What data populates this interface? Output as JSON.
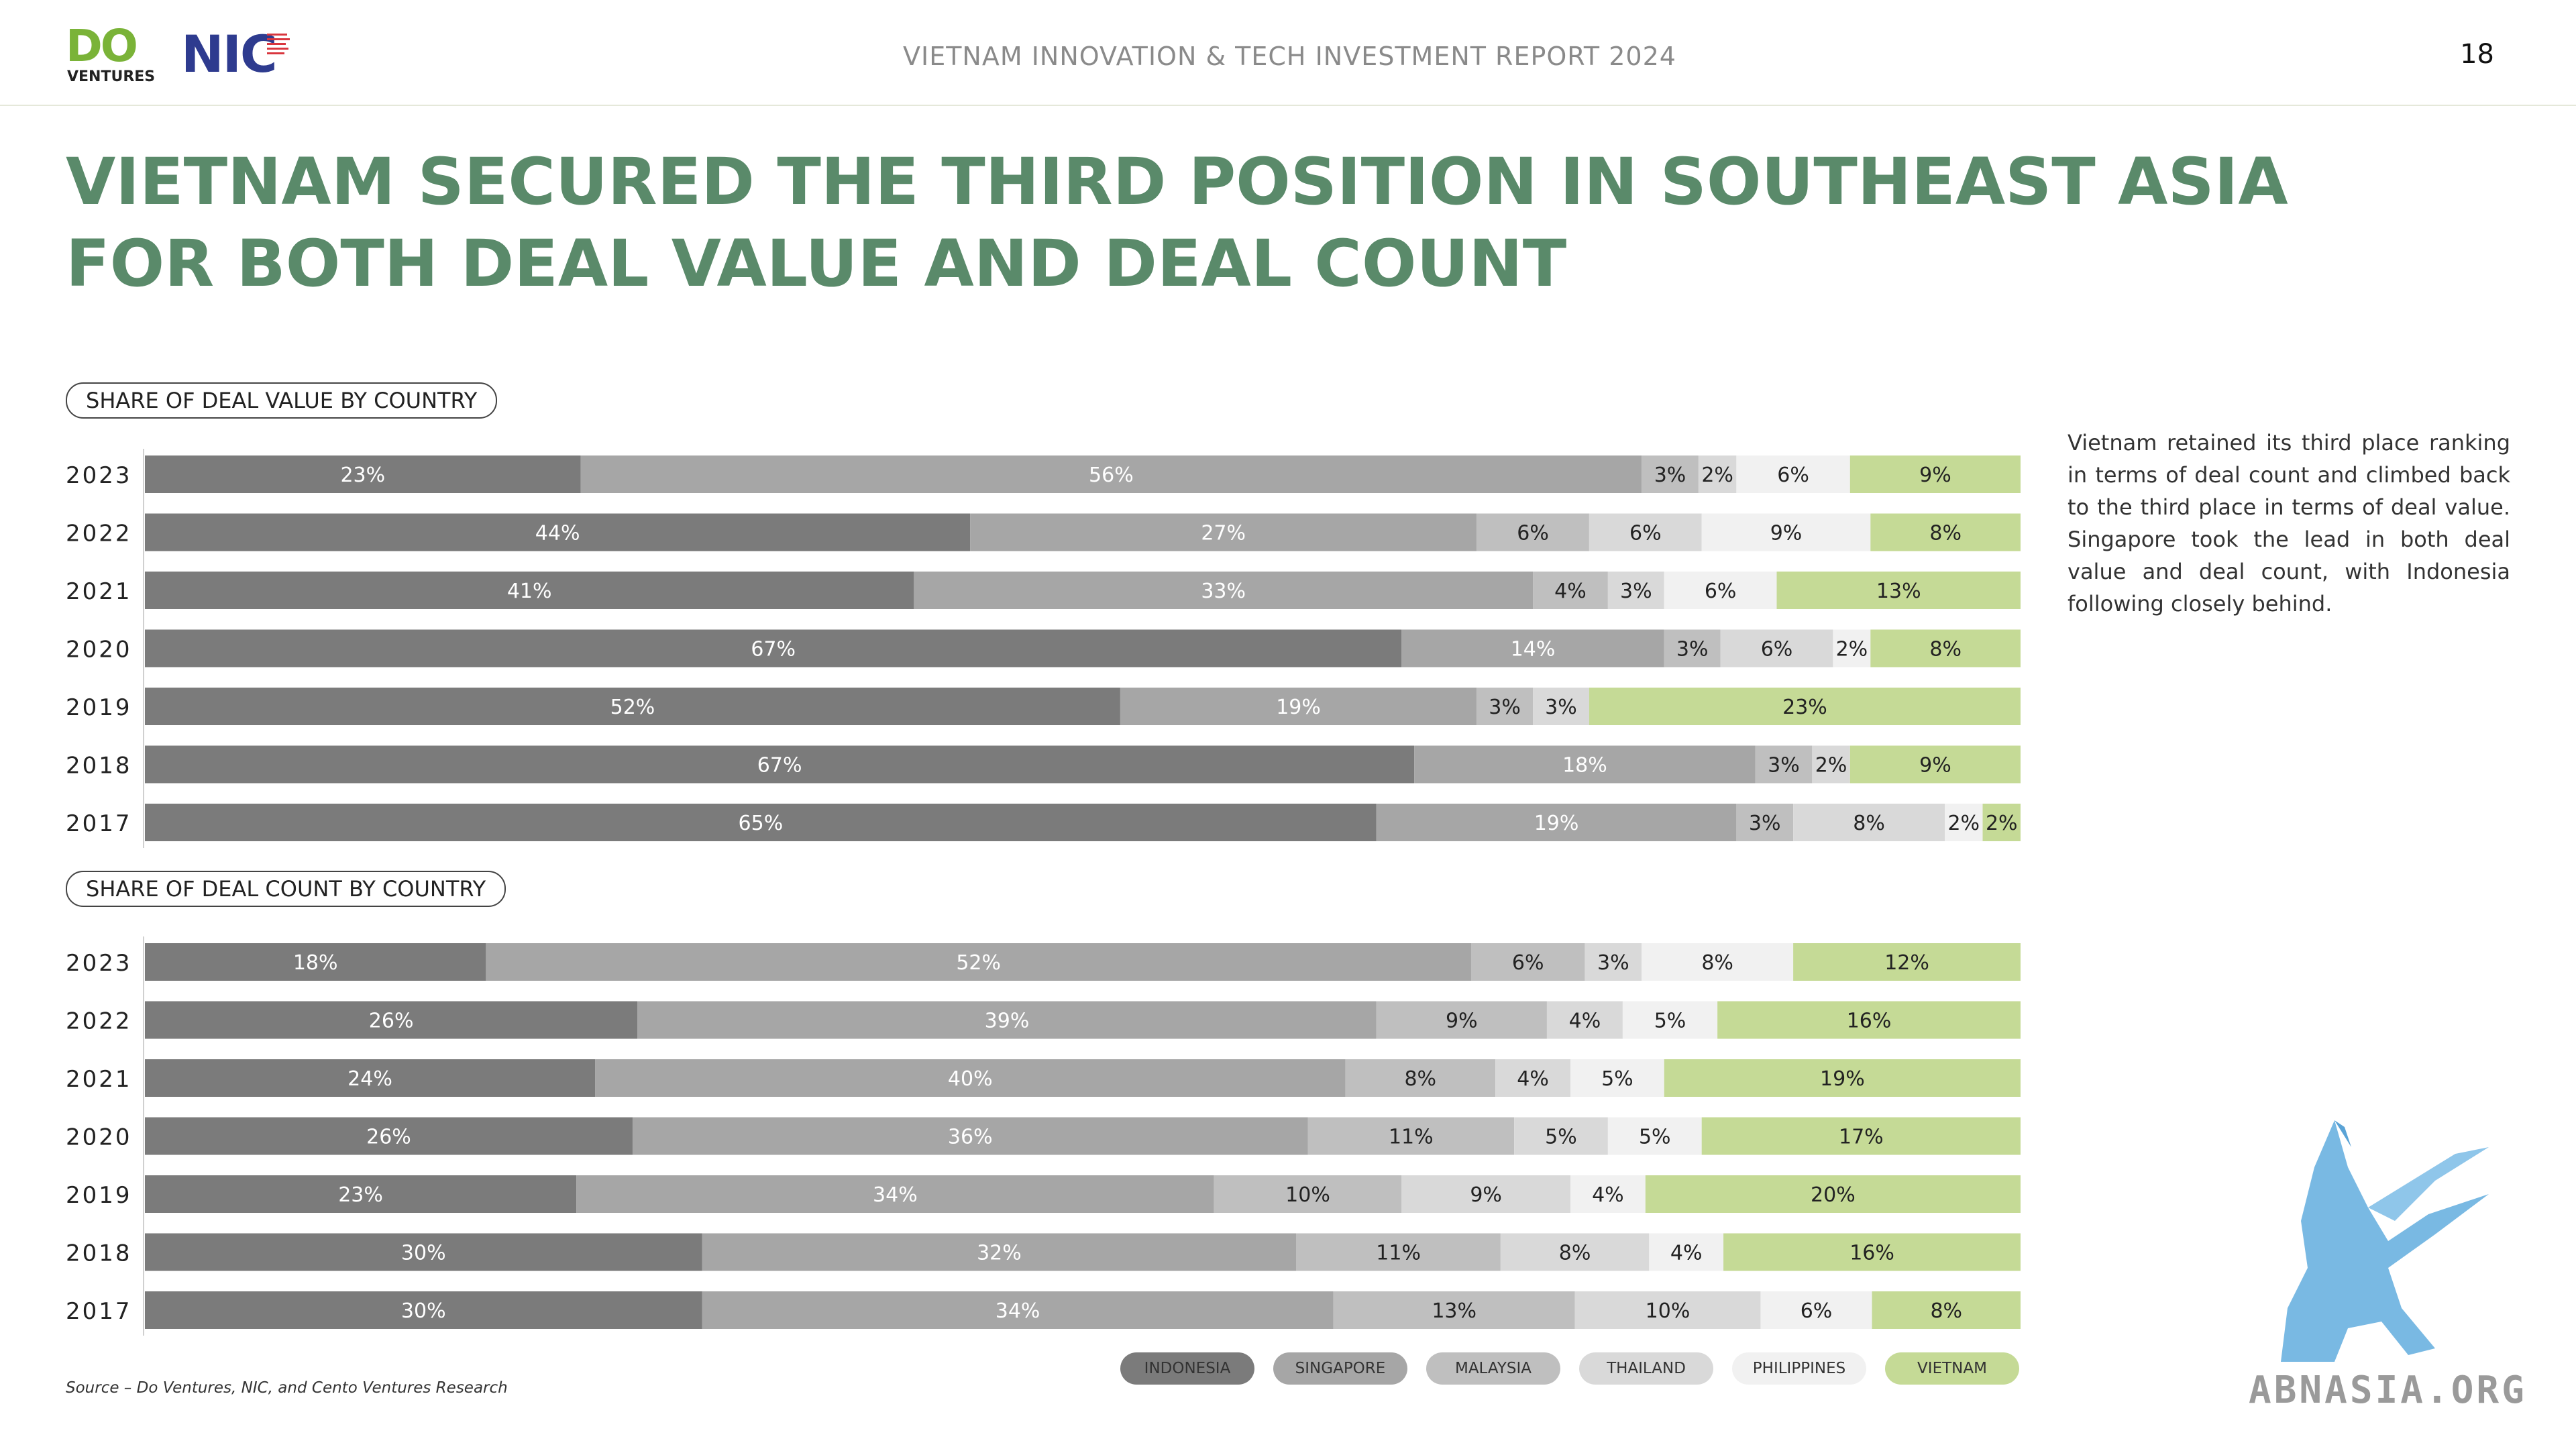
{
  "header": {
    "logo_do": "DO",
    "logo_ventures": "VENTURES",
    "logo_nic": "NIC",
    "report_title": "VIETNAM INNOVATION & TECH INVESTMENT REPORT 2024",
    "page_number": "18"
  },
  "headline": "VIETNAM SECURED THE THIRD POSITION IN SOUTHEAST ASIA FOR BOTH DEAL VALUE AND DEAL COUNT",
  "side_text": "Vietnam retained its third place ranking in terms of deal count and climbed back to the third place in terms of deal value. Singapore took the lead in both deal value and deal count, with Indonesia following closely behind.",
  "source": "Source – Do Ventures, NIC, and Cento Ventures Research",
  "watermark": "ABNASIA.ORG",
  "colors": {
    "INDONESIA": "#7b7b7b",
    "SINGAPORE": "#a6a6a6",
    "MALAYSIA": "#bfbfbf",
    "THAILAND": "#d9d9d9",
    "PHILIPPINES": "#f1f1f1",
    "VIETNAM": "#c5da96",
    "headline": "#5a8a6a"
  },
  "chart_data": [
    {
      "type": "bar",
      "stacked": true,
      "orientation": "horizontal",
      "title": "SHARE OF DEAL VALUE BY COUNTRY",
      "categories": [
        "2023",
        "2022",
        "2021",
        "2020",
        "2019",
        "2018",
        "2017"
      ],
      "series": [
        {
          "name": "INDONESIA",
          "values": [
            23,
            44,
            41,
            67,
            52,
            67,
            65
          ],
          "labels": [
            "23%",
            "44%",
            "41%",
            "67%",
            "52%",
            "67%",
            "65%"
          ]
        },
        {
          "name": "SINGAPORE",
          "values": [
            56,
            27,
            33,
            14,
            19,
            18,
            19
          ],
          "labels": [
            "56%",
            "27%",
            "33%",
            "14%",
            "19%",
            "18%",
            "19%"
          ]
        },
        {
          "name": "MALAYSIA",
          "values": [
            3,
            6,
            4,
            3,
            3,
            3,
            3
          ],
          "labels": [
            "3%",
            "6%",
            "4%",
            "3%",
            "3%",
            "3%",
            "3%"
          ]
        },
        {
          "name": "THAILAND",
          "values": [
            2,
            6,
            3,
            6,
            3,
            2,
            8
          ],
          "labels": [
            "2%",
            "6%",
            "3%",
            "6%",
            "3%",
            "2%",
            "8%"
          ]
        },
        {
          "name": "PHILIPPINES",
          "values": [
            6,
            9,
            6,
            2,
            0,
            0,
            2
          ],
          "labels": [
            "6%",
            "9%",
            "6%",
            "2%",
            "",
            "",
            "2%"
          ]
        },
        {
          "name": "VIETNAM",
          "values": [
            9,
            8,
            13,
            8,
            23,
            9,
            2
          ],
          "labels": [
            "9%",
            "8%",
            "13%",
            "8%",
            "23%",
            "9%",
            "2%"
          ]
        }
      ]
    },
    {
      "type": "bar",
      "stacked": true,
      "orientation": "horizontal",
      "title": "SHARE OF DEAL COUNT BY COUNTRY",
      "categories": [
        "2023",
        "2022",
        "2021",
        "2020",
        "2019",
        "2018",
        "2017"
      ],
      "series": [
        {
          "name": "INDONESIA",
          "values": [
            18,
            26,
            24,
            26,
            23,
            30,
            30
          ],
          "labels": [
            "18%",
            "26%",
            "24%",
            "26%",
            "23%",
            "30%",
            "30%"
          ]
        },
        {
          "name": "SINGAPORE",
          "values": [
            52,
            39,
            40,
            36,
            34,
            32,
            34
          ],
          "labels": [
            "52%",
            "39%",
            "40%",
            "36%",
            "34%",
            "32%",
            "34%"
          ]
        },
        {
          "name": "MALAYSIA",
          "values": [
            6,
            9,
            8,
            11,
            10,
            11,
            13
          ],
          "labels": [
            "6%",
            "9%",
            "8%",
            "11%",
            "10%",
            "11%",
            "13%"
          ]
        },
        {
          "name": "THAILAND",
          "values": [
            3,
            4,
            4,
            5,
            9,
            8,
            10
          ],
          "labels": [
            "3%",
            "4%",
            "4%",
            "5%",
            "9%",
            "8%",
            "10%"
          ]
        },
        {
          "name": "PHILIPPINES",
          "values": [
            8,
            5,
            5,
            5,
            4,
            4,
            6
          ],
          "labels": [
            "8%",
            "5%",
            "5%",
            "5%",
            "4%",
            "4%",
            "6%"
          ]
        },
        {
          "name": "VIETNAM",
          "values": [
            12,
            16,
            19,
            17,
            20,
            16,
            8
          ],
          "labels": [
            "12%",
            "16%",
            "19%",
            "17%",
            "20%",
            "16%",
            "8%"
          ]
        }
      ]
    }
  ],
  "legend": [
    "INDONESIA",
    "SINGAPORE",
    "MALAYSIA",
    "THAILAND",
    "PHILIPPINES",
    "VIETNAM"
  ]
}
